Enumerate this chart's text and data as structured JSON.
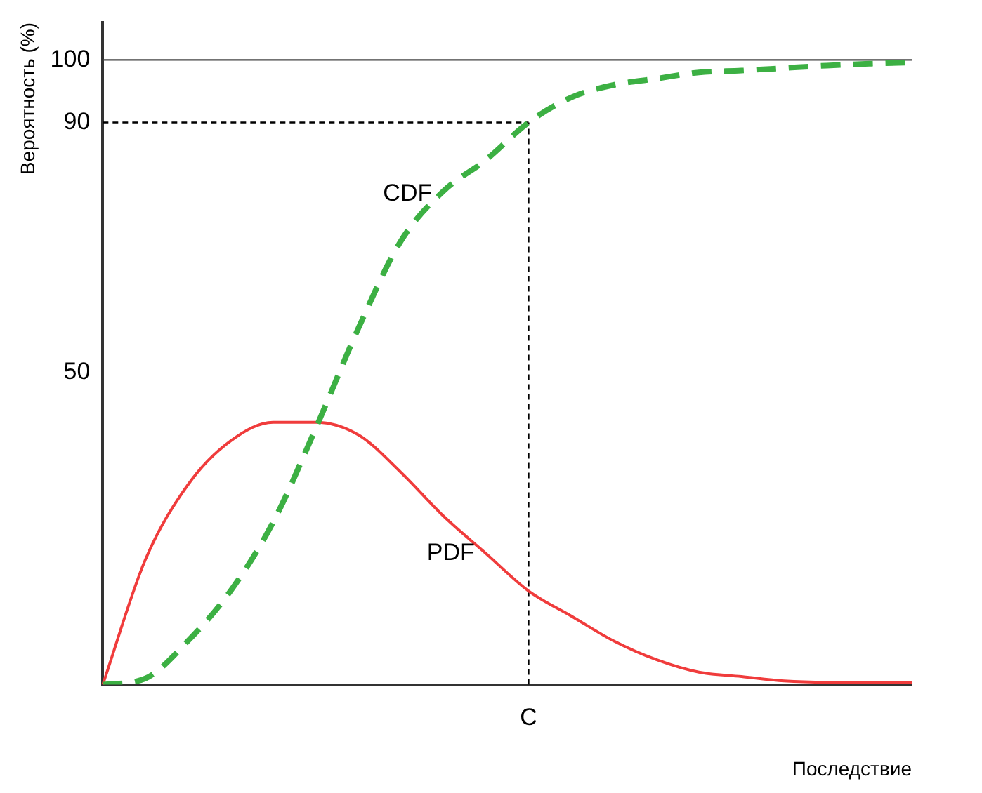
{
  "chart_data": {
    "type": "line",
    "xlabel": "Последствие",
    "ylabel": "Вероятность (%)",
    "categories": [
      null,
      null,
      null,
      null,
      null,
      null,
      null,
      null,
      null,
      null,
      "C",
      null,
      null,
      null,
      null,
      null,
      null,
      null,
      null,
      null
    ],
    "series": [
      {
        "name": "CDF",
        "color": "#3cb043",
        "line_style": "dashed",
        "values": [
          0,
          1,
          7,
          15,
          26,
          41,
          57,
          71,
          79,
          84,
          90,
          94,
          96,
          97,
          98,
          98.3,
          98.7,
          99.1,
          99.4,
          99.6
        ]
      },
      {
        "name": "PDF",
        "color": "#f03c3c",
        "line_style": "solid",
        "values": [
          0,
          20,
          32,
          39,
          42,
          42,
          40,
          34,
          27,
          21,
          15,
          11,
          7,
          4,
          2,
          1.3,
          0.6,
          0.4,
          0.4,
          0.4
        ]
      }
    ],
    "ylim": [
      0,
      106
    ],
    "yticks": [
      50,
      90,
      100
    ],
    "ref_lines": [
      {
        "axis": "y",
        "value": 100,
        "color": "#444444",
        "line_style": "solid"
      },
      {
        "axis": "y",
        "value": 90,
        "color": "#000000",
        "line_style": "dashed"
      },
      {
        "axis": "x",
        "value": "C",
        "color": "#000000",
        "line_style": "dashed"
      }
    ],
    "grid": false,
    "legend": false,
    "marker": "none"
  }
}
